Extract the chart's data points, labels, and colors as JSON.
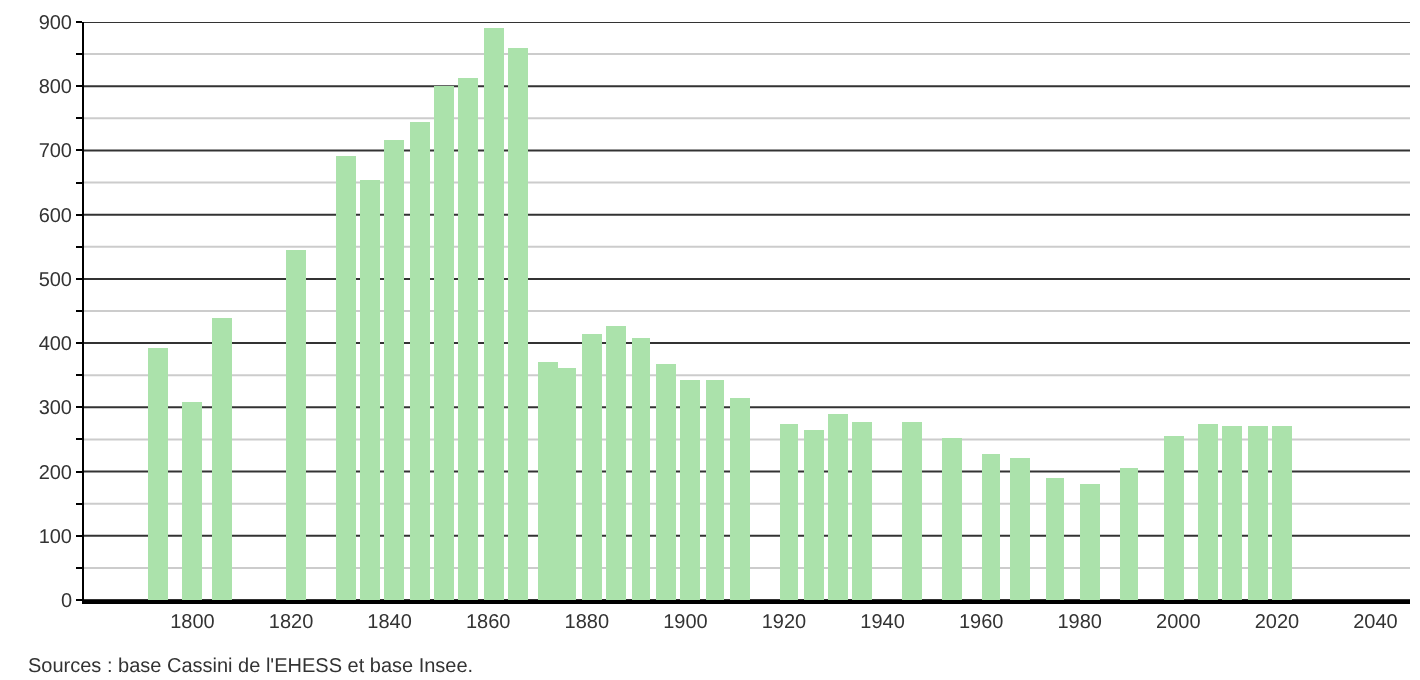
{
  "chart_data": {
    "type": "bar",
    "x": [
      1793,
      1800,
      1806,
      1821,
      1831,
      1836,
      1841,
      1846,
      1851,
      1856,
      1861,
      1866,
      1872,
      1876,
      1881,
      1886,
      1891,
      1896,
      1901,
      1906,
      1911,
      1921,
      1926,
      1931,
      1936,
      1946,
      1954,
      1962,
      1968,
      1975,
      1982,
      1990,
      1999,
      2006,
      2011,
      2016,
      2021
    ],
    "values": [
      392,
      308,
      438,
      545,
      692,
      654,
      715,
      745,
      800,
      812,
      891,
      860,
      371,
      362,
      415,
      427,
      408,
      368,
      343,
      343,
      314,
      274,
      264,
      290,
      276,
      276,
      252,
      227,
      221,
      190,
      181,
      206,
      255,
      275,
      271,
      271,
      271
    ],
    "color": "#abe2ab",
    "xlim": [
      1778,
      2047
    ],
    "xticks": [
      1800,
      1820,
      1840,
      1860,
      1880,
      1900,
      1920,
      1940,
      1960,
      1980,
      2000,
      2020,
      2040
    ],
    "ylim": [
      0,
      900
    ],
    "yticks": [
      0,
      {
        "value": 50,
        "label": null
      },
      100,
      {
        "value": 150,
        "label": null
      },
      200,
      {
        "value": 250,
        "label": null
      },
      300,
      {
        "value": 350,
        "label": null
      },
      400,
      {
        "value": 450,
        "label": null
      },
      500,
      {
        "value": 550,
        "label": null
      },
      600,
      {
        "value": 650,
        "label": null
      },
      700,
      {
        "value": 750,
        "label": null
      },
      800,
      {
        "value": 850,
        "label": null
      },
      900
    ],
    "grid": "y",
    "annotations": [
      "Sources : base Cassini de l'EHESS et base Insee."
    ]
  }
}
